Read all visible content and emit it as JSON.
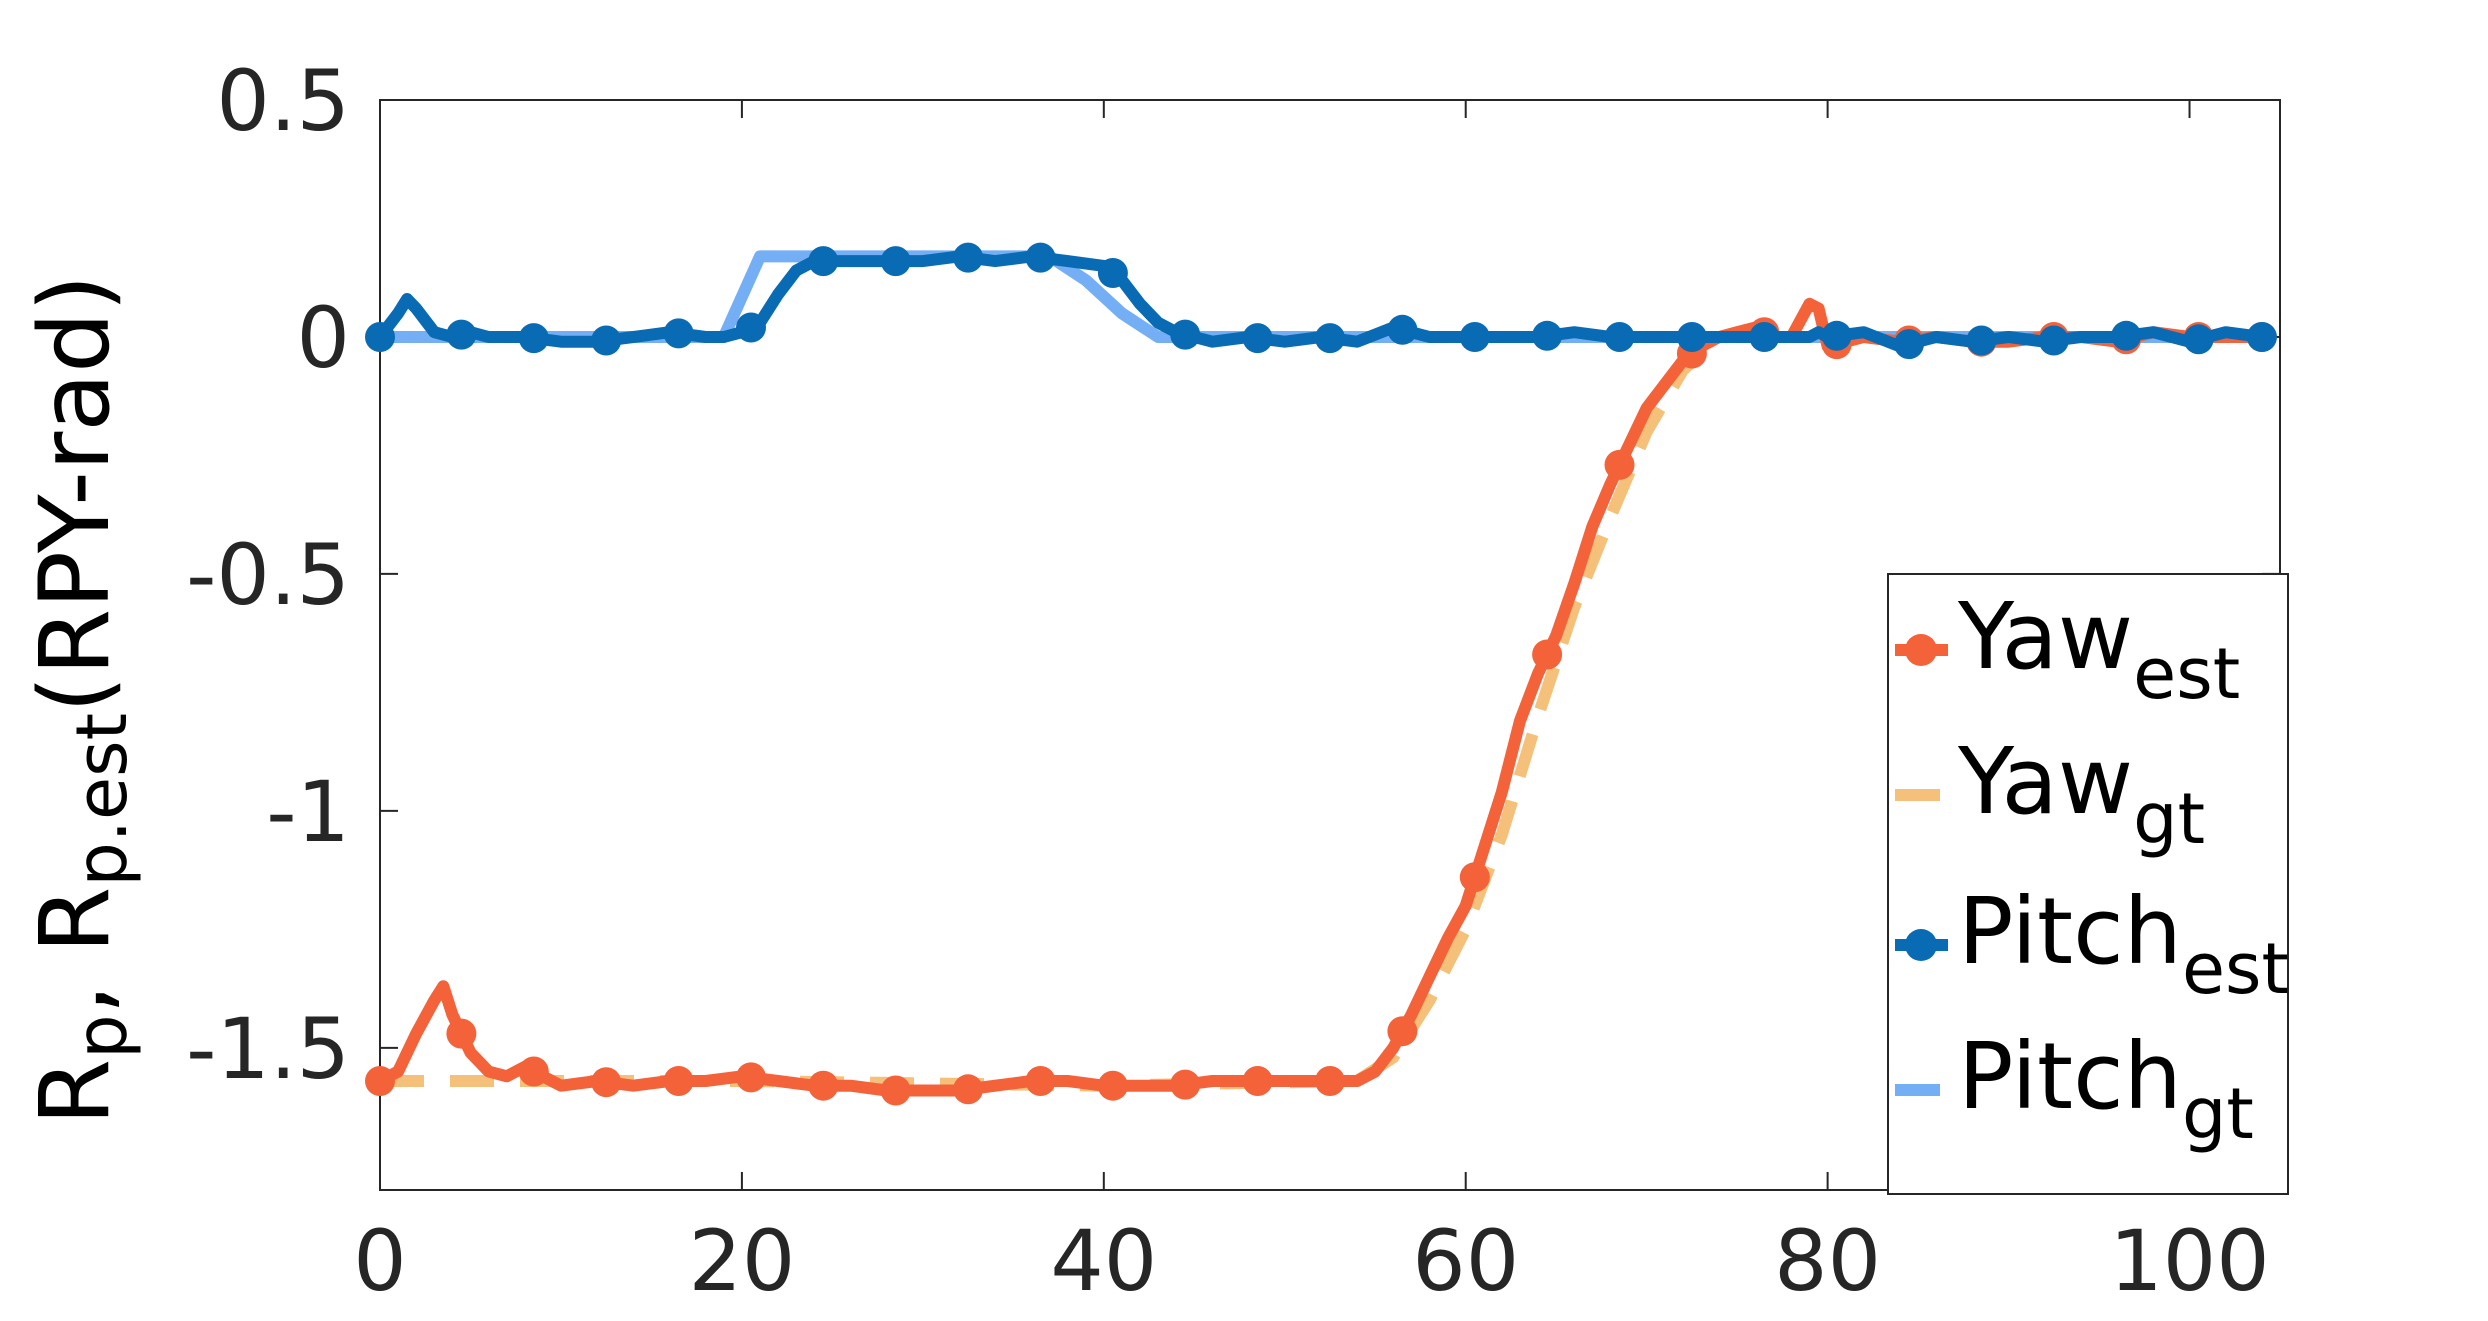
{
  "chart_data": {
    "type": "line",
    "xlim": [
      0,
      105
    ],
    "ylim": [
      -1.8,
      0.5
    ],
    "x_ticks": [
      "0",
      "20",
      "40",
      "60",
      "80",
      "100"
    ],
    "y_ticks": [
      "0.5",
      "0",
      "-0.5",
      "-1",
      "-1.5"
    ],
    "ylabel": {
      "prefix1": "R",
      "sub1": "p",
      "sep": ", R",
      "sub2": "p.est",
      "suffix": "(RPY-rad)"
    },
    "legend_position": "bottom-right",
    "legend_items": [
      {
        "base": "Yaw",
        "sub": "est"
      },
      {
        "base": "Yaw",
        "sub": "gt"
      },
      {
        "base": "Pitch",
        "sub": "est"
      },
      {
        "base": "Pitch",
        "sub": "gt"
      }
    ],
    "series": [
      {
        "name": "Yaw_est",
        "color": "#f4623a",
        "style": "solid-markers",
        "x": [
          0,
          1,
          2,
          3,
          3.5,
          4,
          5,
          6,
          7,
          8,
          9,
          10,
          12,
          14,
          16,
          18,
          20,
          22,
          24,
          26,
          28,
          30,
          32,
          34,
          36,
          38,
          40,
          42,
          44,
          46,
          48,
          50,
          52,
          54,
          55,
          56,
          57,
          58,
          59,
          60,
          61,
          62,
          63,
          64,
          65,
          66,
          67,
          68,
          69,
          70,
          71,
          72,
          73,
          74,
          75,
          76,
          77,
          78,
          79,
          79.5,
          80,
          81,
          82,
          84,
          86,
          88,
          90,
          92,
          94,
          96,
          98,
          100,
          102,
          104
        ],
        "y": [
          -1.57,
          -1.55,
          -1.47,
          -1.4,
          -1.37,
          -1.43,
          -1.51,
          -1.55,
          -1.56,
          -1.54,
          -1.56,
          -1.58,
          -1.57,
          -1.58,
          -1.57,
          -1.57,
          -1.56,
          -1.57,
          -1.58,
          -1.58,
          -1.59,
          -1.59,
          -1.59,
          -1.58,
          -1.57,
          -1.57,
          -1.58,
          -1.58,
          -1.58,
          -1.57,
          -1.57,
          -1.57,
          -1.57,
          -1.57,
          -1.55,
          -1.5,
          -1.43,
          -1.35,
          -1.27,
          -1.2,
          -1.08,
          -0.96,
          -0.81,
          -0.71,
          -0.63,
          -0.52,
          -0.4,
          -0.31,
          -0.23,
          -0.15,
          -0.1,
          -0.05,
          -0.02,
          0.0,
          0.01,
          0.02,
          0.0,
          0.0,
          0.07,
          0.06,
          -0.02,
          -0.01,
          0.0,
          -0.01,
          0.0,
          -0.01,
          -0.01,
          0.0,
          0.0,
          -0.01,
          0.01,
          0.0,
          0.0,
          0.0
        ],
        "marker_x": [
          0,
          4.5,
          8.5,
          12.5,
          16.5,
          20.5,
          24.5,
          28.5,
          32.5,
          36.5,
          40.5,
          44.5,
          48.5,
          52.5,
          56.5,
          60.5,
          64.5,
          68.5,
          72.5,
          76.5,
          80.5,
          84.5,
          88.5,
          92.5,
          96.5,
          100.5,
          104
        ]
      },
      {
        "name": "Yaw_gt",
        "color": "#f5c07a",
        "style": "dashed",
        "x": [
          0,
          20,
          40,
          54,
          56,
          58,
          60,
          62,
          64,
          66,
          68,
          70,
          72,
          74,
          76,
          80,
          104
        ],
        "y": [
          -1.57,
          -1.57,
          -1.58,
          -1.57,
          -1.52,
          -1.4,
          -1.25,
          -1.05,
          -0.8,
          -0.57,
          -0.38,
          -0.2,
          -0.07,
          0.0,
          0.0,
          0.0,
          0.0
        ]
      },
      {
        "name": "Pitch_est",
        "color": "#0a6bb5",
        "style": "solid-markers",
        "x": [
          0,
          1,
          1.5,
          2,
          3,
          4,
          5,
          6,
          8,
          10,
          12,
          14,
          16,
          18,
          19,
          20,
          21,
          22,
          23,
          24,
          26,
          28,
          30,
          32,
          34,
          36,
          38,
          40,
          41,
          42,
          43,
          44,
          45,
          46,
          48,
          50,
          52,
          54,
          56,
          58,
          60,
          62,
          64,
          66,
          68,
          70,
          72,
          74,
          76,
          78,
          79,
          79.5,
          80,
          82,
          84,
          86,
          88,
          90,
          92,
          94,
          96,
          98,
          100,
          102,
          104
        ],
        "y": [
          0.0,
          0.05,
          0.08,
          0.06,
          0.01,
          0.0,
          0.01,
          0.0,
          0.0,
          -0.01,
          -0.01,
          0.0,
          0.01,
          0.0,
          0.0,
          0.01,
          0.03,
          0.09,
          0.14,
          0.16,
          0.16,
          0.16,
          0.16,
          0.17,
          0.16,
          0.17,
          0.16,
          0.15,
          0.12,
          0.07,
          0.03,
          0.01,
          0.0,
          -0.01,
          0.0,
          -0.01,
          0.0,
          -0.01,
          0.02,
          0.0,
          0.0,
          0.0,
          0.0,
          0.01,
          0.0,
          0.0,
          0.0,
          0.0,
          0.0,
          0.0,
          0.0,
          0.01,
          0.0,
          0.01,
          -0.02,
          0.0,
          -0.01,
          0.0,
          -0.01,
          0.0,
          0.0,
          0.01,
          -0.01,
          0.01,
          0.0
        ],
        "marker_x": [
          0,
          4.5,
          8.5,
          12.5,
          16.5,
          20.5,
          24.5,
          28.5,
          32.5,
          36.5,
          40.5,
          44.5,
          48.5,
          52.5,
          56.5,
          60.5,
          64.5,
          68.5,
          72.5,
          76.5,
          80.5,
          84.5,
          88.5,
          92.5,
          96.5,
          100.5,
          104
        ]
      },
      {
        "name": "Pitch_gt",
        "color": "#74aef5",
        "style": "solid",
        "x": [
          0,
          19,
          21,
          37,
          39,
          41,
          43,
          104
        ],
        "y": [
          0.0,
          0.0,
          0.17,
          0.17,
          0.12,
          0.05,
          0.0,
          0.0
        ]
      }
    ]
  }
}
